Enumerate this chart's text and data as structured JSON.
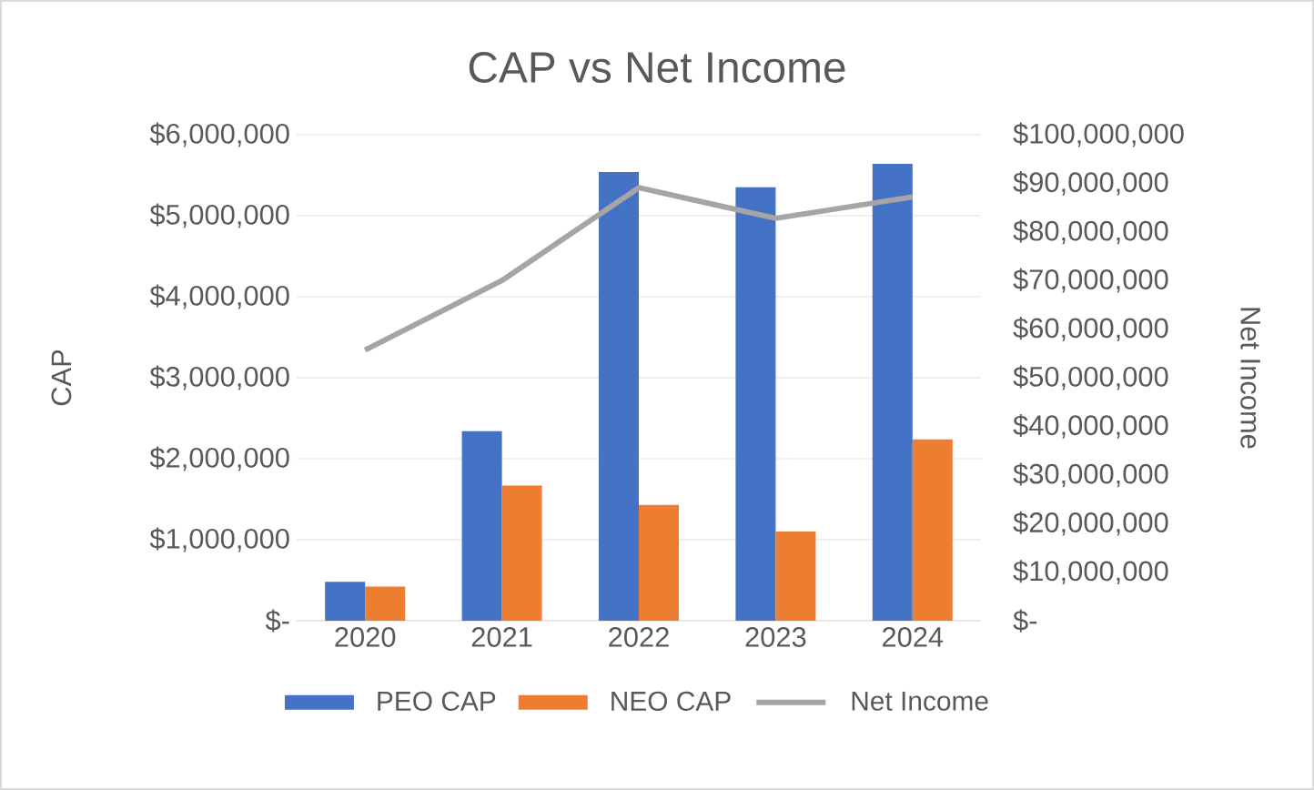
{
  "chart_data": {
    "type": "bar",
    "title": "CAP vs Net Income",
    "ylabel": "CAP",
    "y2label": "Net Income",
    "categories": [
      "2020",
      "2021",
      "2022",
      "2023",
      "2024"
    ],
    "series": [
      {
        "name": "PEO CAP",
        "color": "#4472c4",
        "values": [
          480000,
          2340000,
          5540000,
          5350000,
          5640000
        ]
      },
      {
        "name": "NEO CAP",
        "color": "#ed7d31",
        "values": [
          420000,
          1670000,
          1430000,
          1100000,
          2240000
        ]
      },
      {
        "name": "Net Income",
        "type": "line",
        "axis": "y2",
        "color": "#a5a5a5",
        "marker": "none",
        "values": [
          55700000,
          70000000,
          89100000,
          82800000,
          87200000
        ]
      }
    ],
    "ylim": [
      0,
      6000000
    ],
    "yticks": [
      {
        "value": 0,
        "label": "$-"
      },
      {
        "value": 1000000,
        "label": "$1,000,000"
      },
      {
        "value": 2000000,
        "label": "$2,000,000"
      },
      {
        "value": 3000000,
        "label": "$3,000,000"
      },
      {
        "value": 4000000,
        "label": "$4,000,000"
      },
      {
        "value": 5000000,
        "label": "$5,000,000"
      },
      {
        "value": 6000000,
        "label": "$6,000,000"
      }
    ],
    "y2lim": [
      0,
      100000000
    ],
    "y2ticks": [
      {
        "value": 0,
        "label": "$-"
      },
      {
        "value": 10000000,
        "label": "$10,000,000"
      },
      {
        "value": 20000000,
        "label": "$20,000,000"
      },
      {
        "value": 30000000,
        "label": "$30,000,000"
      },
      {
        "value": 40000000,
        "label": "$40,000,000"
      },
      {
        "value": 50000000,
        "label": "$50,000,000"
      },
      {
        "value": 60000000,
        "label": "$60,000,000"
      },
      {
        "value": 70000000,
        "label": "$70,000,000"
      },
      {
        "value": 80000000,
        "label": "$80,000,000"
      },
      {
        "value": 90000000,
        "label": "$90,000,000"
      },
      {
        "value": 100000000,
        "label": "$100,000,000"
      }
    ],
    "grid": "y",
    "legend": "bottom"
  }
}
